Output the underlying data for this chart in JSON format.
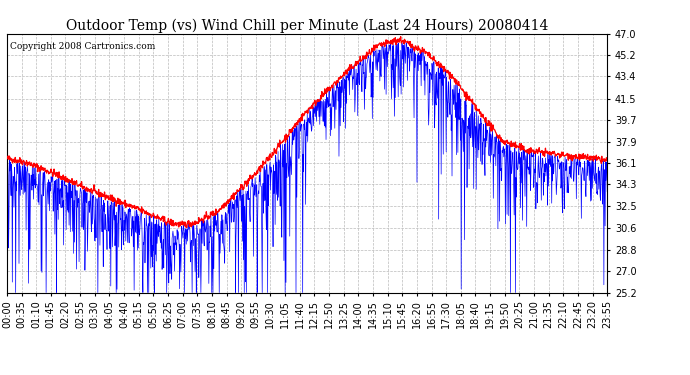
{
  "title": "Outdoor Temp (vs) Wind Chill per Minute (Last 24 Hours) 20080414",
  "copyright": "Copyright 2008 Cartronics.com",
  "yticks": [
    25.2,
    27.0,
    28.8,
    30.6,
    32.5,
    34.3,
    36.1,
    37.9,
    39.7,
    41.5,
    43.4,
    45.2,
    47.0
  ],
  "xtick_labels": [
    "00:00",
    "00:35",
    "01:10",
    "01:45",
    "02:20",
    "02:55",
    "03:30",
    "04:05",
    "04:40",
    "05:15",
    "05:50",
    "06:25",
    "07:00",
    "07:35",
    "08:10",
    "08:45",
    "09:20",
    "09:55",
    "10:30",
    "11:05",
    "11:40",
    "12:15",
    "12:50",
    "13:25",
    "14:00",
    "14:35",
    "15:10",
    "15:45",
    "16:20",
    "16:55",
    "17:30",
    "18:05",
    "18:40",
    "19:15",
    "19:50",
    "20:25",
    "21:00",
    "21:35",
    "22:10",
    "22:45",
    "23:20",
    "23:55"
  ],
  "outdoor_color": "#0000ff",
  "windchill_color": "#ff0000",
  "background_color": "#ffffff",
  "grid_color": "#bbbbbb",
  "title_fontsize": 10,
  "copyright_fontsize": 6.5,
  "tick_fontsize": 7,
  "ymin": 25.2,
  "ymax": 47.0,
  "n_points": 1440,
  "seed": 42
}
